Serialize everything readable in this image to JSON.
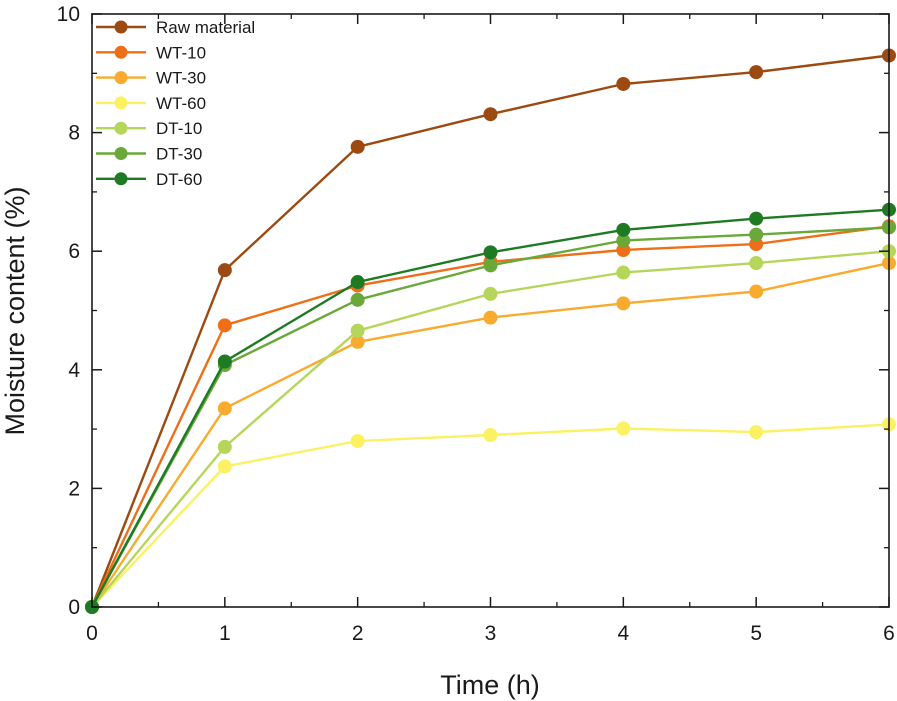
{
  "chart_data": {
    "type": "line",
    "xlabel": "Time (h)",
    "ylabel": "Moisture content (%)",
    "xlim": [
      0,
      6
    ],
    "ylim": [
      0,
      10
    ],
    "x_ticks": [
      0,
      1,
      2,
      3,
      4,
      5,
      6
    ],
    "y_ticks": [
      0,
      2,
      4,
      6,
      8,
      10
    ],
    "grid": false,
    "legend_position": "top-left",
    "x": [
      0,
      1,
      2,
      3,
      4,
      5,
      6
    ],
    "series": [
      {
        "name": "Raw material",
        "color": "#9c4a12",
        "values": [
          0,
          5.68,
          7.76,
          8.31,
          8.82,
          9.02,
          9.3
        ]
      },
      {
        "name": "WT-10",
        "color": "#ee6f17",
        "values": [
          0,
          4.75,
          5.42,
          5.82,
          6.02,
          6.12,
          6.42
        ]
      },
      {
        "name": "WT-30",
        "color": "#f8ab2e",
        "values": [
          0,
          3.35,
          4.47,
          4.88,
          5.12,
          5.32,
          5.8
        ]
      },
      {
        "name": "WT-60",
        "color": "#fbf163",
        "values": [
          0,
          2.37,
          2.8,
          2.9,
          3.01,
          2.95,
          3.08
        ]
      },
      {
        "name": "DT-10",
        "color": "#b5d65a",
        "values": [
          0,
          2.7,
          4.66,
          5.28,
          5.64,
          5.8,
          6.0
        ]
      },
      {
        "name": "DT-30",
        "color": "#6aa83a",
        "values": [
          0,
          4.08,
          5.18,
          5.76,
          6.18,
          6.28,
          6.4
        ]
      },
      {
        "name": "DT-60",
        "color": "#1f7a24",
        "values": [
          0,
          4.14,
          5.48,
          5.98,
          6.36,
          6.55,
          6.7
        ]
      }
    ]
  }
}
